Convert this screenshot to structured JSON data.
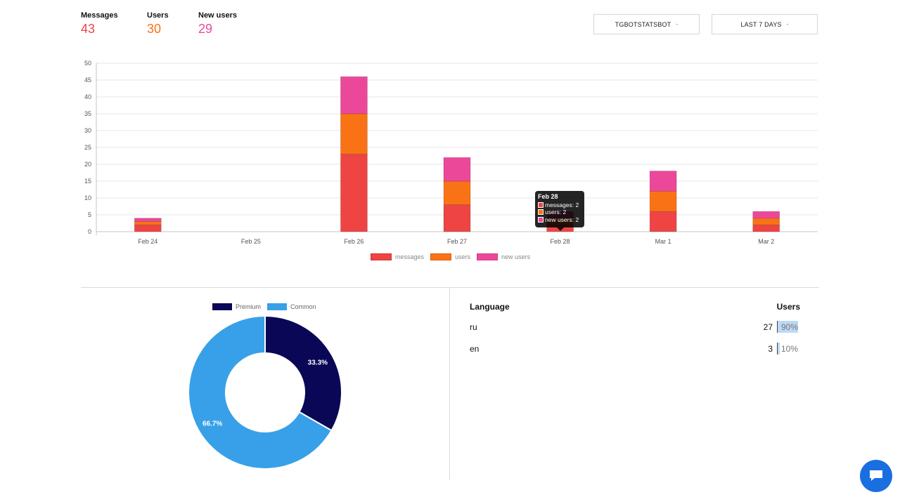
{
  "stats": {
    "messages": {
      "label": "Messages",
      "value": "43",
      "color": "#ef4444"
    },
    "users": {
      "label": "Users",
      "value": "30",
      "color": "#f97316"
    },
    "new_users": {
      "label": "New users",
      "value": "29",
      "color": "#ec4899"
    }
  },
  "filters": {
    "bot": {
      "label": "TGBOTSTATSBOT",
      "caret": "-"
    },
    "period": {
      "label": "LAST 7 DAYS",
      "caret": "-"
    }
  },
  "chart_data": [
    {
      "type": "bar",
      "stacked": true,
      "categories": [
        "Feb 24",
        "Feb 25",
        "Feb 26",
        "Feb 27",
        "Feb 28",
        "Mar 1",
        "Mar 2"
      ],
      "series": [
        {
          "name": "messages",
          "color": "#ef4444",
          "values": [
            2,
            0,
            23,
            8,
            2,
            6,
            2
          ]
        },
        {
          "name": "users",
          "color": "#f97316",
          "values": [
            1,
            0,
            12,
            7,
            2,
            6,
            2
          ]
        },
        {
          "name": "new users",
          "color": "#ec4899",
          "values": [
            1,
            0,
            11,
            7,
            2,
            6,
            2
          ]
        }
      ],
      "ylim": [
        0,
        50
      ],
      "yticks": [
        0,
        5,
        10,
        15,
        20,
        25,
        30,
        35,
        40,
        45,
        50
      ],
      "grid": true,
      "legend": "bottom",
      "tooltip": {
        "title": "Feb 28",
        "rows": [
          "messages: 2",
          "users: 2",
          "new users: 2"
        ]
      }
    },
    {
      "type": "pie",
      "donut": true,
      "categories": [
        "Premium",
        "Common"
      ],
      "values": [
        33.3,
        66.7
      ],
      "labels": [
        "33.3%",
        "66.7%"
      ],
      "colors": [
        "#0b0757",
        "#38a0e8"
      ],
      "legend": "top"
    }
  ],
  "languages": {
    "header_language": "Language",
    "header_users": "Users",
    "rows": [
      {
        "lang": "ru",
        "count": "27",
        "pct": "90%",
        "fraction": 0.9
      },
      {
        "lang": "en",
        "count": "3",
        "pct": "10%",
        "fraction": 0.1
      }
    ],
    "bar_color": "#bcd9f5"
  },
  "chat_button": {
    "icon": "chat-bubble-icon",
    "color": "#1a6fe0"
  }
}
